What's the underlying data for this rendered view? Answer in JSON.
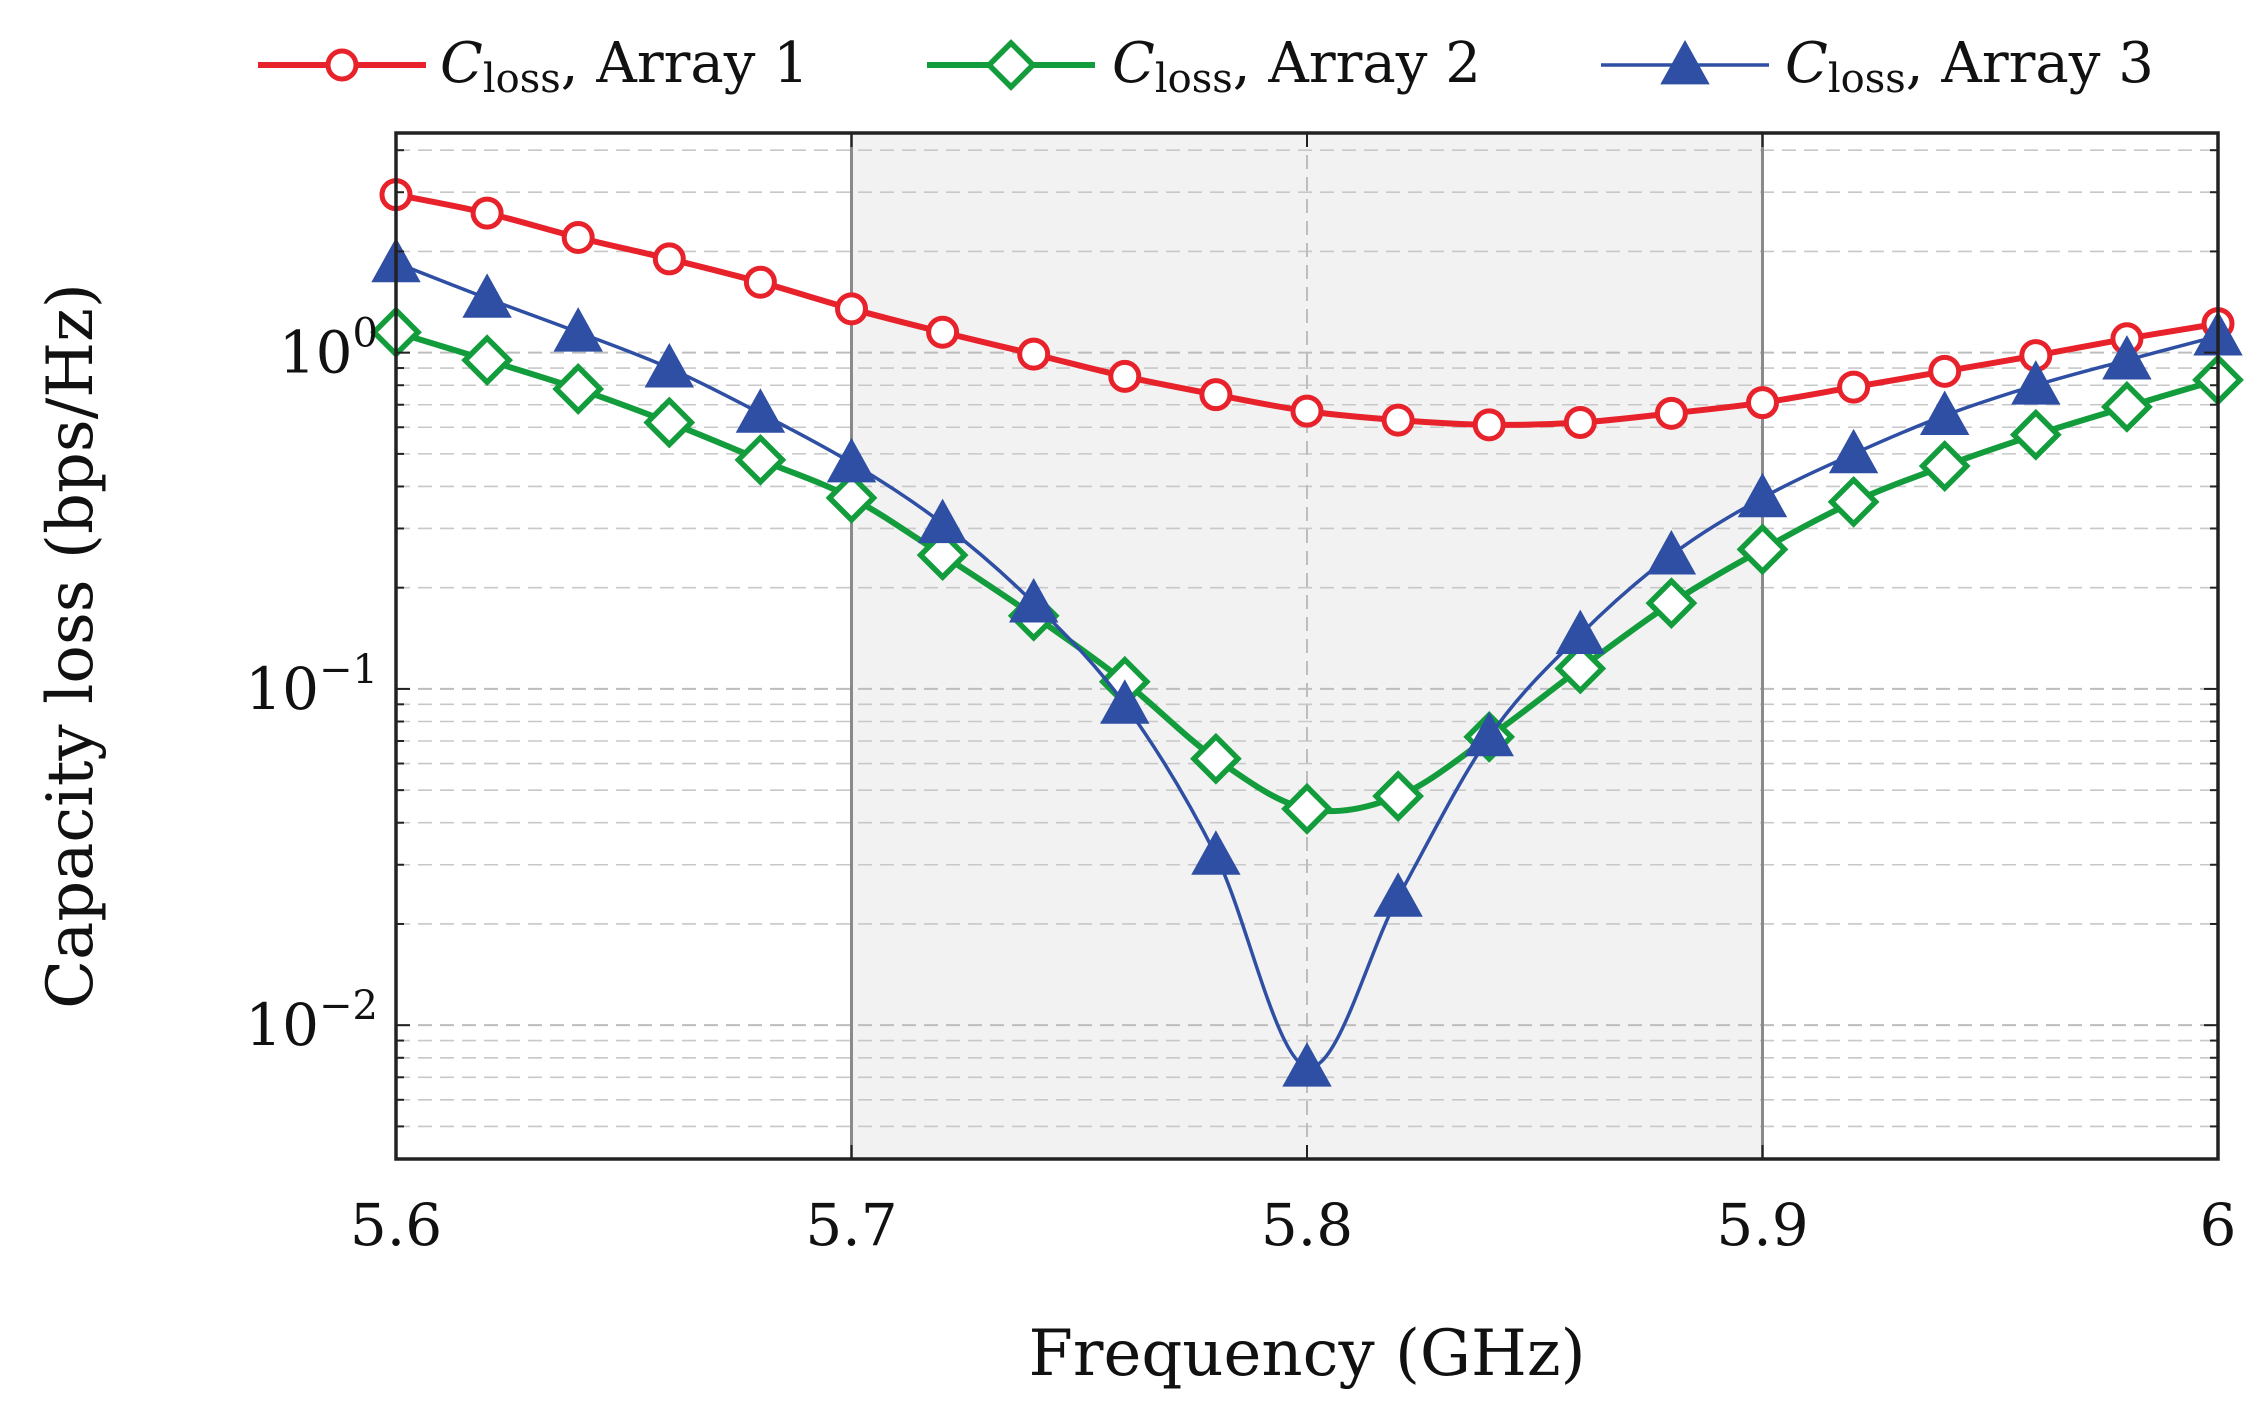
{
  "chart_data": {
    "type": "line",
    "xlabel": "Frequency (GHz)",
    "ylabel": "Capacity loss (bps/Hz)",
    "xlim": [
      5.6,
      6.0
    ],
    "ylim": [
      0.004,
      4.5
    ],
    "yscale": "log",
    "grid": true,
    "legend_position": "top",
    "highlight_band": [
      5.7,
      5.9
    ],
    "highlight_color": "#f2f2f2",
    "x_ticks": [
      {
        "value": 5.6,
        "label": "5.6"
      },
      {
        "value": 5.7,
        "label": "5.7"
      },
      {
        "value": 5.8,
        "label": "5.8"
      },
      {
        "value": 5.9,
        "label": "5.9"
      },
      {
        "value": 6.0,
        "label": "6"
      }
    ],
    "y_ticks": [
      {
        "value": 1,
        "base": "10",
        "exp": "0"
      },
      {
        "value": 0.1,
        "base": "10",
        "exp": "−1"
      },
      {
        "value": 0.01,
        "base": "10",
        "exp": "−2"
      }
    ],
    "x": [
      5.6,
      5.62,
      5.64,
      5.66,
      5.68,
      5.7,
      5.72,
      5.74,
      5.76,
      5.78,
      5.8,
      5.82,
      5.84,
      5.86,
      5.88,
      5.9,
      5.92,
      5.94,
      5.96,
      5.98,
      6.0
    ],
    "series": [
      {
        "name_symbol": "C",
        "name_sub": "loss",
        "name_rest": ", Array 1",
        "color": "#e8222b",
        "marker": "circle",
        "values": [
          2.95,
          2.6,
          2.2,
          1.9,
          1.62,
          1.35,
          1.15,
          0.99,
          0.85,
          0.75,
          0.67,
          0.63,
          0.61,
          0.62,
          0.66,
          0.71,
          0.79,
          0.88,
          0.98,
          1.1,
          1.22
        ]
      },
      {
        "name_symbol": "C",
        "name_sub": "loss",
        "name_rest": ", Array 2",
        "color": "#139c3c",
        "marker": "diamond",
        "values": [
          1.15,
          0.95,
          0.78,
          0.62,
          0.48,
          0.37,
          0.25,
          0.165,
          0.105,
          0.062,
          0.044,
          0.048,
          0.072,
          0.115,
          0.18,
          0.26,
          0.36,
          0.46,
          0.57,
          0.69,
          0.83
        ]
      },
      {
        "name_symbol": "C",
        "name_sub": "loss",
        "name_rest": ", Array 3",
        "color": "#2e4fa3",
        "marker": "triangle",
        "values": [
          1.85,
          1.45,
          1.15,
          0.9,
          0.66,
          0.47,
          0.31,
          0.18,
          0.09,
          0.032,
          0.0075,
          0.024,
          0.072,
          0.145,
          0.25,
          0.37,
          0.5,
          0.65,
          0.8,
          0.95,
          1.12
        ]
      }
    ]
  }
}
